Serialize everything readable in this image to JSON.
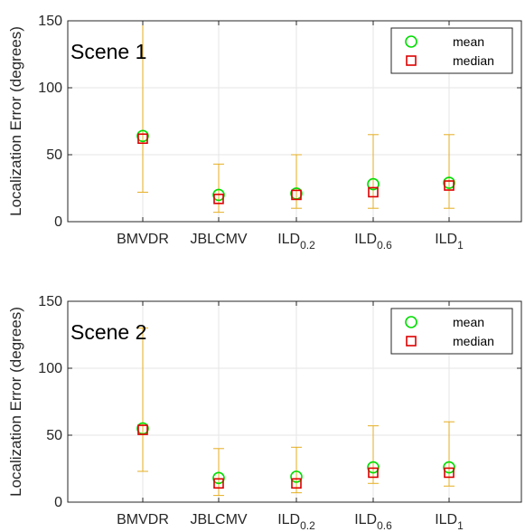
{
  "chart_data": [
    {
      "type": "scatter",
      "title": "Scene 1",
      "ylabel": "Localization Error (degrees)",
      "ylim": [
        0,
        150
      ],
      "yticks": [
        0,
        50,
        100,
        150
      ],
      "categories": [
        {
          "base": "BMVDR",
          "sub": ""
        },
        {
          "base": "JBLCMV",
          "sub": ""
        },
        {
          "base": "ILD",
          "sub": "0.2"
        },
        {
          "base": "ILD",
          "sub": "0.6"
        },
        {
          "base": "ILD",
          "sub": "1"
        }
      ],
      "grid": true,
      "legend_position": "top-right",
      "series": [
        {
          "name": "mean",
          "marker": "circle",
          "color": "#00dd00",
          "values": [
            64,
            20,
            21,
            28,
            29
          ]
        },
        {
          "name": "median",
          "marker": "square",
          "color": "#dd0000",
          "values": [
            62,
            17,
            20,
            22,
            27
          ]
        }
      ],
      "error_range": {
        "color": "#e5ae22",
        "low": [
          22,
          7,
          10,
          10,
          10
        ],
        "high": [
          150,
          43,
          50,
          65,
          65
        ]
      }
    },
    {
      "type": "scatter",
      "title": "Scene 2",
      "ylabel": "Localization Error (degrees)",
      "ylim": [
        0,
        150
      ],
      "yticks": [
        0,
        50,
        100,
        150
      ],
      "categories": [
        {
          "base": "BMVDR",
          "sub": ""
        },
        {
          "base": "JBLCMV",
          "sub": ""
        },
        {
          "base": "ILD",
          "sub": "0.2"
        },
        {
          "base": "ILD",
          "sub": "0.6"
        },
        {
          "base": "ILD",
          "sub": "1"
        }
      ],
      "grid": true,
      "legend_position": "top-right",
      "series": [
        {
          "name": "mean",
          "marker": "circle",
          "color": "#00dd00",
          "values": [
            55,
            18,
            19,
            26,
            26
          ]
        },
        {
          "name": "median",
          "marker": "square",
          "color": "#dd0000",
          "values": [
            54,
            14,
            14,
            22,
            22
          ]
        }
      ],
      "error_range": {
        "color": "#e5ae22",
        "low": [
          23,
          5,
          7,
          14,
          12
        ],
        "high": [
          130,
          40,
          41,
          57,
          60
        ]
      }
    }
  ]
}
